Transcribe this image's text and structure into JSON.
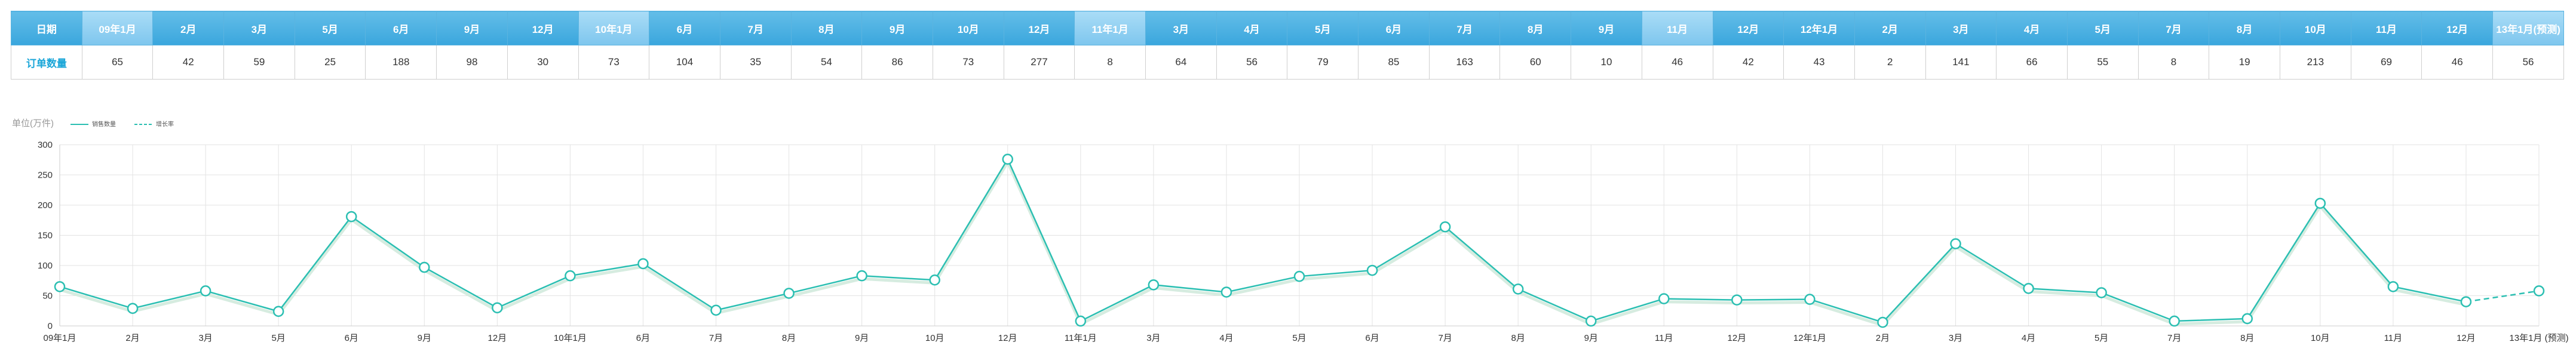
{
  "table": {
    "row1_label": "日期",
    "row2_label": "订单数量",
    "highlight_indices": [
      0,
      7,
      14,
      22,
      34
    ]
  },
  "chart_data": {
    "type": "line",
    "unit_label": "单位(万件)",
    "categories": [
      "09年1月",
      "2月",
      "3月",
      "5月",
      "6月",
      "9月",
      "12月",
      "10年1月",
      "6月",
      "7月",
      "8月",
      "9月",
      "10月",
      "12月",
      "11年1月",
      "3月",
      "4月",
      "5月",
      "6月",
      "7月",
      "8月",
      "9月",
      "11月",
      "12月",
      "12年1月",
      "2月",
      "3月",
      "4月",
      "5月",
      "7月",
      "8月",
      "10月",
      "11月",
      "12月",
      "13年1月(预测)"
    ],
    "chart_categories": [
      "09年1月",
      "2月",
      "3月",
      "5月",
      "6月",
      "9月",
      "12月",
      "10年1月",
      "6月",
      "7月",
      "8月",
      "9月",
      "10月",
      "12月",
      "11年1月",
      "3月",
      "4月",
      "5月",
      "6月",
      "7月",
      "8月",
      "9月",
      "11月",
      "12月",
      "12年1月",
      "2月",
      "3月",
      "4月",
      "5月",
      "7月",
      "8月",
      "10月",
      "11月",
      "12月",
      "13年1月 (预测)"
    ],
    "values": [
      65,
      42,
      59,
      25,
      188,
      98,
      30,
      73,
      104,
      35,
      54,
      86,
      73,
      277,
      8,
      64,
      56,
      79,
      85,
      163,
      60,
      10,
      46,
      42,
      43,
      2,
      141,
      66,
      55,
      8,
      19,
      213,
      69,
      46,
      56
    ],
    "series": [
      {
        "name": "销售数量",
        "style": "solid",
        "values": [
          65,
          29,
          58,
          24,
          181,
          97,
          30,
          83,
          103,
          26,
          54,
          83,
          76,
          276,
          8,
          68,
          56,
          82,
          92,
          164,
          61,
          8,
          45,
          43,
          44,
          6,
          136,
          62,
          55,
          8,
          12,
          203,
          65,
          40,
          null
        ]
      },
      {
        "name": "增长率",
        "style": "dashed",
        "values": [
          null,
          null,
          null,
          null,
          null,
          null,
          null,
          null,
          null,
          null,
          null,
          null,
          null,
          null,
          null,
          null,
          null,
          null,
          null,
          null,
          null,
          null,
          null,
          null,
          null,
          null,
          null,
          null,
          null,
          null,
          null,
          null,
          null,
          40,
          58
        ]
      }
    ],
    "ylim": [
      0,
      300
    ],
    "yticks": [
      0,
      50,
      100,
      150,
      200,
      250,
      300
    ],
    "grid": true,
    "legend_position": "top-left",
    "colors": {
      "line": "#2bbfb2",
      "shadow": "#d6ece0",
      "header": "#3aa6dd",
      "header_highlight": "#8fd0f2",
      "row_label": "#1aa6d8"
    }
  }
}
